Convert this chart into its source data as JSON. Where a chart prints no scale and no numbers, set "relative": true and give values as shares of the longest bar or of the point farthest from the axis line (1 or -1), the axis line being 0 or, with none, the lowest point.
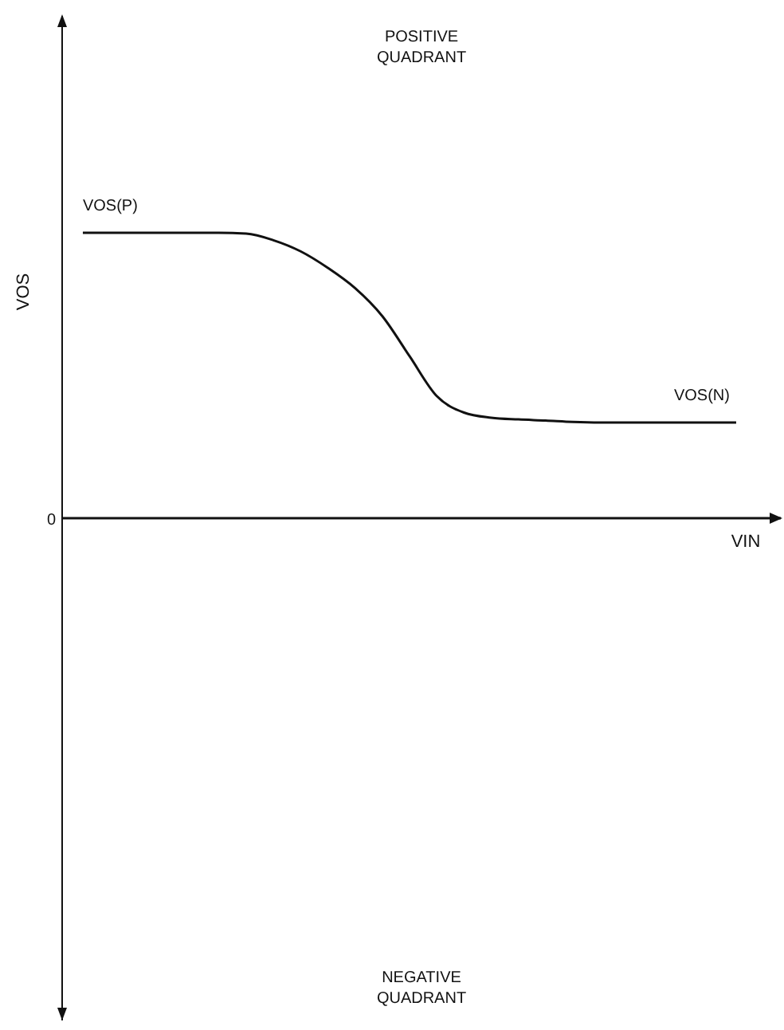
{
  "chart_data": {
    "type": "line",
    "relative": true,
    "xlabel": "VIN",
    "ylabel": "VOS",
    "categories": [
      null,
      null,
      null,
      null,
      null,
      null,
      null,
      null,
      null,
      null,
      null,
      null,
      null,
      null,
      null,
      null,
      null,
      null,
      null,
      null,
      null,
      null,
      null,
      null,
      null
    ],
    "series": [
      {
        "color": "#111111",
        "values": [
          1,
          1,
          1,
          1,
          1,
          1,
          0.997,
          0.974,
          0.935,
          0.877,
          0.806,
          0.708,
          0.568,
          0.428,
          0.37,
          0.352,
          0.346,
          0.342,
          0.337,
          0.335,
          0.335,
          0.335,
          0.335,
          0.335,
          0.335
        ]
      }
    ],
    "annotations": [
      "POSITIVE QUADRANT",
      "NEGATIVE QUADRANT",
      "VOS(P)",
      "VOS(N)",
      "0"
    ],
    "legend": false,
    "grid": false,
    "marker": "none",
    "line_style": "solid"
  }
}
